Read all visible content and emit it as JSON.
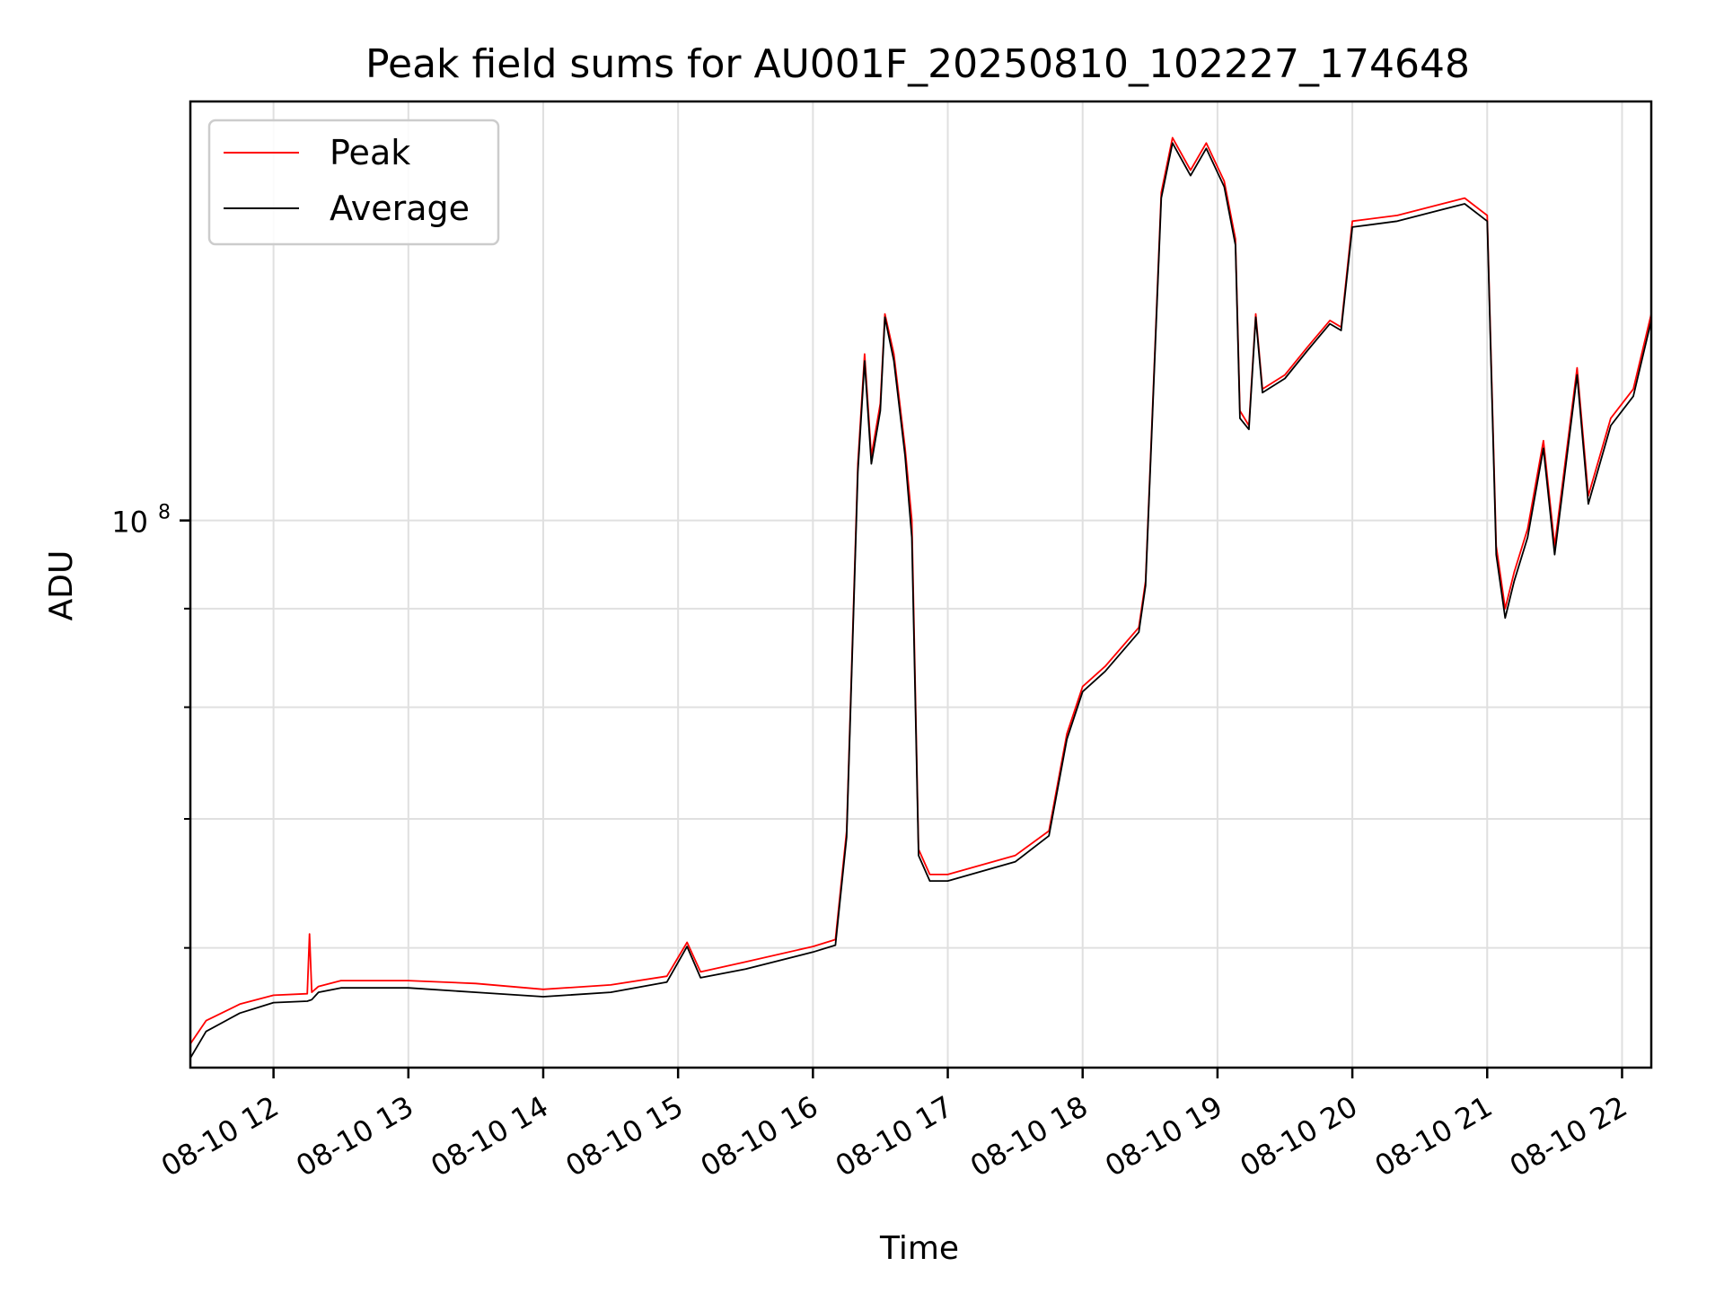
{
  "chart_data": {
    "type": "line",
    "title": "Peak field sums for AU001F_20250810_102227_174648",
    "xlabel": "Time",
    "ylabel": "ADU",
    "y_scale": "log",
    "y_tick_labels": [
      {
        "value": 100000000,
        "label": "10",
        "exponent": "8"
      }
    ],
    "y_minor_ticks": [
      60000000,
      70000000,
      80000000,
      90000000
    ],
    "ylim": [
      52000000,
      165000000
    ],
    "xlim": [
      "2025-08-10 11:23",
      "2025-08-10 22:13"
    ],
    "x_ticks": [
      {
        "value": "2025-08-10 12:00",
        "label": "08-10 12"
      },
      {
        "value": "2025-08-10 13:00",
        "label": "08-10 13"
      },
      {
        "value": "2025-08-10 14:00",
        "label": "08-10 14"
      },
      {
        "value": "2025-08-10 15:00",
        "label": "08-10 15"
      },
      {
        "value": "2025-08-10 16:00",
        "label": "08-10 16"
      },
      {
        "value": "2025-08-10 17:00",
        "label": "08-10 17"
      },
      {
        "value": "2025-08-10 18:00",
        "label": "08-10 18"
      },
      {
        "value": "2025-08-10 19:00",
        "label": "08-10 19"
      },
      {
        "value": "2025-08-10 20:00",
        "label": "08-10 20"
      },
      {
        "value": "2025-08-10 21:00",
        "label": "08-10 21"
      },
      {
        "value": "2025-08-10 22:00",
        "label": "08-10 22"
      }
    ],
    "grid": true,
    "legend": "upper-left",
    "series": [
      {
        "name": "Peak",
        "color": "#ff0000",
        "points": [
          [
            "2025-08-10 11:23",
            53500000
          ],
          [
            "2025-08-10 11:30",
            55000000
          ],
          [
            "2025-08-10 11:45",
            56100000
          ],
          [
            "2025-08-10 12:00",
            56700000
          ],
          [
            "2025-08-10 12:15",
            56800000
          ],
          [
            "2025-08-10 12:16",
            61000000
          ],
          [
            "2025-08-10 12:17",
            56900000
          ],
          [
            "2025-08-10 12:20",
            57300000
          ],
          [
            "2025-08-10 12:30",
            57700000
          ],
          [
            "2025-08-10 13:00",
            57700000
          ],
          [
            "2025-08-10 13:30",
            57500000
          ],
          [
            "2025-08-10 14:00",
            57100000
          ],
          [
            "2025-08-10 14:30",
            57400000
          ],
          [
            "2025-08-10 14:55",
            58000000
          ],
          [
            "2025-08-10 15:04",
            60400000
          ],
          [
            "2025-08-10 15:10",
            58300000
          ],
          [
            "2025-08-10 15:30",
            59000000
          ],
          [
            "2025-08-10 16:00",
            60100000
          ],
          [
            "2025-08-10 16:10",
            60600000
          ],
          [
            "2025-08-10 16:15",
            69000000
          ],
          [
            "2025-08-10 16:20",
            107000000
          ],
          [
            "2025-08-10 16:23",
            122000000
          ],
          [
            "2025-08-10 16:26",
            108000000
          ],
          [
            "2025-08-10 16:30",
            115000000
          ],
          [
            "2025-08-10 16:32",
            128000000
          ],
          [
            "2025-08-10 16:36",
            122000000
          ],
          [
            "2025-08-10 16:41",
            109000000
          ],
          [
            "2025-08-10 16:44",
            100000000
          ],
          [
            "2025-08-10 16:47",
            67500000
          ],
          [
            "2025-08-10 16:52",
            65500000
          ],
          [
            "2025-08-10 17:00",
            65500000
          ],
          [
            "2025-08-10 17:30",
            67000000
          ],
          [
            "2025-08-10 17:45",
            69000000
          ],
          [
            "2025-08-10 17:53",
            77500000
          ],
          [
            "2025-08-10 18:00",
            82000000
          ],
          [
            "2025-08-10 18:10",
            84000000
          ],
          [
            "2025-08-10 18:25",
            88000000
          ],
          [
            "2025-08-10 18:28",
            93000000
          ],
          [
            "2025-08-10 18:35",
            148000000
          ],
          [
            "2025-08-10 18:40",
            158000000
          ],
          [
            "2025-08-10 18:48",
            152000000
          ],
          [
            "2025-08-10 18:55",
            157000000
          ],
          [
            "2025-08-10 19:03",
            150000000
          ],
          [
            "2025-08-10 19:08",
            140000000
          ],
          [
            "2025-08-10 19:10",
            114000000
          ],
          [
            "2025-08-10 19:14",
            112000000
          ],
          [
            "2025-08-10 19:17",
            128000000
          ],
          [
            "2025-08-10 19:20",
            117000000
          ],
          [
            "2025-08-10 19:30",
            119000000
          ],
          [
            "2025-08-10 19:40",
            123000000
          ],
          [
            "2025-08-10 19:50",
            127000000
          ],
          [
            "2025-08-10 19:55",
            126000000
          ],
          [
            "2025-08-10 20:00",
            143000000
          ],
          [
            "2025-08-10 20:20",
            144000000
          ],
          [
            "2025-08-10 20:40",
            146000000
          ],
          [
            "2025-08-10 20:50",
            147000000
          ],
          [
            "2025-08-10 21:00",
            144000000
          ],
          [
            "2025-08-10 21:04",
            97000000
          ],
          [
            "2025-08-10 21:08",
            90000000
          ],
          [
            "2025-08-10 21:12",
            94000000
          ],
          [
            "2025-08-10 21:18",
            99000000
          ],
          [
            "2025-08-10 21:25",
            110000000
          ],
          [
            "2025-08-10 21:30",
            97000000
          ],
          [
            "2025-08-10 21:40",
            120000000
          ],
          [
            "2025-08-10 21:45",
            103000000
          ],
          [
            "2025-08-10 21:55",
            113000000
          ],
          [
            "2025-08-10 22:05",
            117000000
          ],
          [
            "2025-08-10 22:13",
            128000000
          ]
        ]
      },
      {
        "name": "Average",
        "color": "#000000",
        "points": [
          [
            "2025-08-10 11:23",
            52600000
          ],
          [
            "2025-08-10 11:30",
            54300000
          ],
          [
            "2025-08-10 11:45",
            55500000
          ],
          [
            "2025-08-10 12:00",
            56200000
          ],
          [
            "2025-08-10 12:15",
            56300000
          ],
          [
            "2025-08-10 12:17",
            56400000
          ],
          [
            "2025-08-10 12:20",
            56900000
          ],
          [
            "2025-08-10 12:30",
            57200000
          ],
          [
            "2025-08-10 13:00",
            57200000
          ],
          [
            "2025-08-10 13:30",
            56900000
          ],
          [
            "2025-08-10 14:00",
            56600000
          ],
          [
            "2025-08-10 14:30",
            56900000
          ],
          [
            "2025-08-10 14:55",
            57600000
          ],
          [
            "2025-08-10 15:04",
            60100000
          ],
          [
            "2025-08-10 15:10",
            57900000
          ],
          [
            "2025-08-10 15:30",
            58500000
          ],
          [
            "2025-08-10 16:00",
            59700000
          ],
          [
            "2025-08-10 16:10",
            60200000
          ],
          [
            "2025-08-10 16:15",
            68500000
          ],
          [
            "2025-08-10 16:20",
            106000000
          ],
          [
            "2025-08-10 16:23",
            121000000
          ],
          [
            "2025-08-10 16:26",
            107000000
          ],
          [
            "2025-08-10 16:30",
            114000000
          ],
          [
            "2025-08-10 16:32",
            127500000
          ],
          [
            "2025-08-10 16:36",
            121000000
          ],
          [
            "2025-08-10 16:41",
            108000000
          ],
          [
            "2025-08-10 16:44",
            98000000
          ],
          [
            "2025-08-10 16:47",
            67000000
          ],
          [
            "2025-08-10 16:52",
            65000000
          ],
          [
            "2025-08-10 17:00",
            65000000
          ],
          [
            "2025-08-10 17:30",
            66500000
          ],
          [
            "2025-08-10 17:45",
            68600000
          ],
          [
            "2025-08-10 17:53",
            77000000
          ],
          [
            "2025-08-10 18:00",
            81500000
          ],
          [
            "2025-08-10 18:10",
            83500000
          ],
          [
            "2025-08-10 18:25",
            87500000
          ],
          [
            "2025-08-10 18:28",
            92500000
          ],
          [
            "2025-08-10 18:35",
            147000000
          ],
          [
            "2025-08-10 18:40",
            157000000
          ],
          [
            "2025-08-10 18:48",
            151000000
          ],
          [
            "2025-08-10 18:55",
            156000000
          ],
          [
            "2025-08-10 19:03",
            149000000
          ],
          [
            "2025-08-10 19:08",
            139000000
          ],
          [
            "2025-08-10 19:10",
            113000000
          ],
          [
            "2025-08-10 19:14",
            111500000
          ],
          [
            "2025-08-10 19:17",
            127500000
          ],
          [
            "2025-08-10 19:20",
            116500000
          ],
          [
            "2025-08-10 19:30",
            118500000
          ],
          [
            "2025-08-10 19:40",
            122500000
          ],
          [
            "2025-08-10 19:50",
            126500000
          ],
          [
            "2025-08-10 19:55",
            125500000
          ],
          [
            "2025-08-10 20:00",
            142000000
          ],
          [
            "2025-08-10 20:20",
            143000000
          ],
          [
            "2025-08-10 20:40",
            145000000
          ],
          [
            "2025-08-10 20:50",
            146000000
          ],
          [
            "2025-08-10 21:00",
            143000000
          ],
          [
            "2025-08-10 21:04",
            96000000
          ],
          [
            "2025-08-10 21:08",
            89000000
          ],
          [
            "2025-08-10 21:12",
            93000000
          ],
          [
            "2025-08-10 21:18",
            98000000
          ],
          [
            "2025-08-10 21:25",
            109000000
          ],
          [
            "2025-08-10 21:30",
            96000000
          ],
          [
            "2025-08-10 21:40",
            119000000
          ],
          [
            "2025-08-10 21:45",
            102000000
          ],
          [
            "2025-08-10 21:55",
            112000000
          ],
          [
            "2025-08-10 22:05",
            116000000
          ],
          [
            "2025-08-10 22:13",
            127000000
          ]
        ]
      }
    ]
  }
}
